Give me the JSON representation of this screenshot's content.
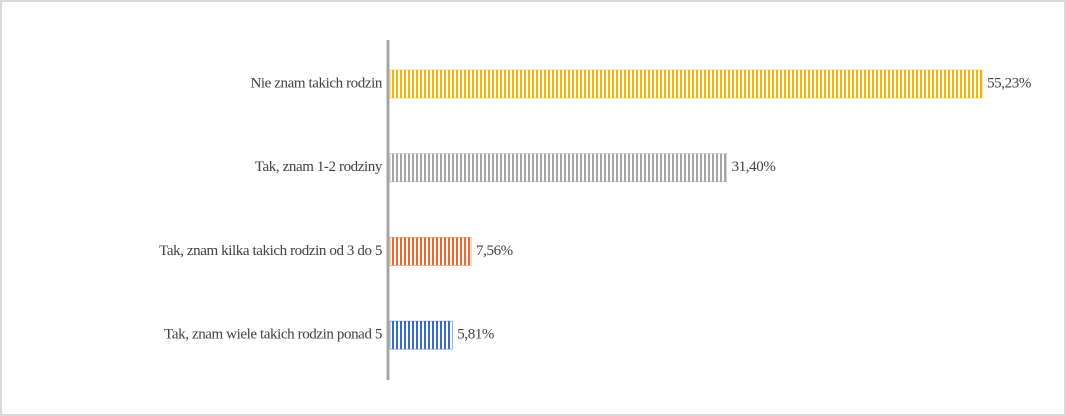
{
  "chart_data": {
    "type": "bar",
    "orientation": "horizontal",
    "categories": [
      "Nie znam takich rodzin",
      "Tak, znam 1-2 rodziny",
      "Tak, znam kilka takich rodzin od 3 do 5",
      "Tak, znam wiele takich rodzin ponad 5"
    ],
    "values": [
      55.23,
      31.4,
      7.56,
      5.81
    ],
    "value_labels": [
      "55,23%",
      "31,40%",
      "7,56%",
      "5,81%"
    ],
    "colors": [
      "#f2b705",
      "#a6a6a6",
      "#ed6a2f",
      "#3a6bc9"
    ]
  }
}
